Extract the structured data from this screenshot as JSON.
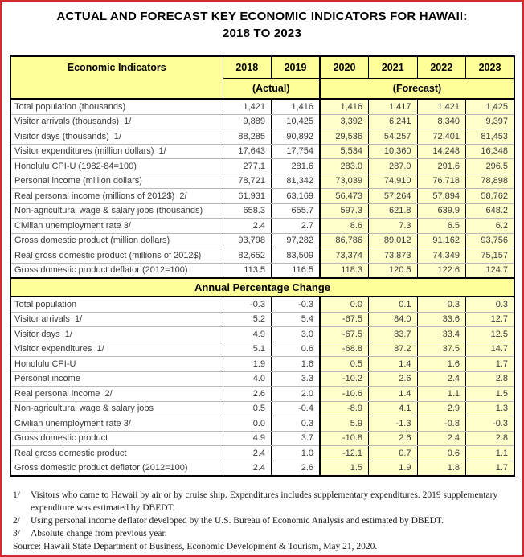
{
  "page": {
    "title_line1": "ACTUAL AND FORECAST KEY ECONOMIC INDICATORS FOR HAWAII:",
    "title_line2": "2018 TO 2023"
  },
  "table": {
    "header": {
      "indicator_label": "Economic Indicators",
      "years": [
        "2018",
        "2019",
        "2020",
        "2021",
        "2022",
        "2023"
      ],
      "actual_label": "(Actual)",
      "forecast_label": "(Forecast)"
    },
    "levels_rows": [
      {
        "label": "Total population (thousands)",
        "values": [
          "1,421",
          "1,416",
          "1,416",
          "1,417",
          "1,421",
          "1,425"
        ]
      },
      {
        "label": "Visitor arrivals (thousands)  1/",
        "values": [
          "9,889",
          "10,425",
          "3,392",
          "6,241",
          "8,340",
          "9,397"
        ]
      },
      {
        "label": "Visitor days (thousands)  1/",
        "values": [
          "88,285",
          "90,892",
          "29,536",
          "54,257",
          "72,401",
          "81,453"
        ]
      },
      {
        "label": "Visitor expenditures (million dollars)  1/",
        "values": [
          "17,643",
          "17,754",
          "5,534",
          "10,360",
          "14,248",
          "16,348"
        ]
      },
      {
        "label": "Honolulu CPI-U (1982-84=100)",
        "values": [
          "277.1",
          "281.6",
          "283.0",
          "287.0",
          "291.6",
          "296.5"
        ]
      },
      {
        "label": "Personal income (million dollars)",
        "values": [
          "78,721",
          "81,342",
          "73,039",
          "74,910",
          "76,718",
          "78,898"
        ]
      },
      {
        "label": "Real personal income (millions of 2012$)  2/",
        "values": [
          "61,931",
          "63,169",
          "56,473",
          "57,264",
          "57,894",
          "58,762"
        ]
      },
      {
        "label": "Non-agricultural wage & salary jobs (thousands)",
        "values": [
          "658.3",
          "655.7",
          "597.3",
          "621.8",
          "639.9",
          "648.2"
        ]
      },
      {
        "label": "Civilian unemployment rate 3/",
        "values": [
          "2.4",
          "2.7",
          "8.6",
          "7.3",
          "6.5",
          "6.2"
        ]
      },
      {
        "label": "Gross domestic product (million dollars)",
        "values": [
          "93,798",
          "97,282",
          "86,786",
          "89,012",
          "91,162",
          "93,756"
        ]
      },
      {
        "label": "Real gross domestic product (millions of 2012$)",
        "values": [
          "82,652",
          "83,509",
          "73,374",
          "73,873",
          "74,349",
          "75,157"
        ]
      },
      {
        "label": "Gross domestic product deflator (2012=100)",
        "values": [
          "113.5",
          "116.5",
          "118.3",
          "120.5",
          "122.6",
          "124.7"
        ]
      }
    ],
    "section2_title": "Annual Percentage Change",
    "change_rows": [
      {
        "label": "Total population",
        "values": [
          "-0.3",
          "-0.3",
          "0.0",
          "0.1",
          "0.3",
          "0.3"
        ]
      },
      {
        "label": "Visitor arrivals  1/",
        "values": [
          "5.2",
          "5.4",
          "-67.5",
          "84.0",
          "33.6",
          "12.7"
        ]
      },
      {
        "label": "Visitor days  1/",
        "values": [
          "4.9",
          "3.0",
          "-67.5",
          "83.7",
          "33.4",
          "12.5"
        ]
      },
      {
        "label": "Visitor expenditures  1/",
        "values": [
          "5.1",
          "0.6",
          "-68.8",
          "87.2",
          "37.5",
          "14.7"
        ]
      },
      {
        "label": "Honolulu CPI-U",
        "values": [
          "1.9",
          "1.6",
          "0.5",
          "1.4",
          "1.6",
          "1.7"
        ]
      },
      {
        "label": "Personal income",
        "values": [
          "4.0",
          "3.3",
          "-10.2",
          "2.6",
          "2.4",
          "2.8"
        ]
      },
      {
        "label": "Real personal income  2/",
        "values": [
          "2.6",
          "2.0",
          "-10.6",
          "1.4",
          "1.1",
          "1.5"
        ]
      },
      {
        "label": "Non-agricultural wage & salary jobs",
        "values": [
          "0.5",
          "-0.4",
          "-8.9",
          "4.1",
          "2.9",
          "1.3"
        ]
      },
      {
        "label": "Civilian unemployment rate 3/",
        "values": [
          "0.0",
          "0.3",
          "5.9",
          "-1.3",
          "-0.8",
          "-0.3"
        ]
      },
      {
        "label": "Gross domestic product",
        "values": [
          "4.9",
          "3.7",
          "-10.8",
          "2.6",
          "2.4",
          "2.8"
        ]
      },
      {
        "label": "Real gross domestic product",
        "values": [
          "2.4",
          "1.0",
          "-12.1",
          "0.7",
          "0.6",
          "1.1"
        ]
      },
      {
        "label": "Gross domestic product deflator (2012=100)",
        "values": [
          "2.4",
          "2.6",
          "1.5",
          "1.9",
          "1.8",
          "1.7"
        ]
      }
    ]
  },
  "footnotes": [
    {
      "marker": "1/",
      "text": "Visitors who came to Hawaii by air or by cruise ship.  Expenditures includes supplementary expenditures.  2019 supplementary expenditure was estimated by DBEDT."
    },
    {
      "marker": "2/",
      "text": "Using personal income deflator developed by the U.S. Bureau of Economic Analysis and estimated by DBEDT."
    },
    {
      "marker": "3/",
      "text": "Absolute change from previous year."
    },
    {
      "marker": "Source:",
      "text": "Hawaii State Department of Business, Economic Development & Tourism, May 21, 2020."
    }
  ],
  "colors": {
    "header_yellow": "#ffff99",
    "forecast_yellow": "#ffffcc",
    "section_yellow": "#ffff99",
    "page_border_red": "#d22b2b",
    "table_border": "#000000"
  }
}
